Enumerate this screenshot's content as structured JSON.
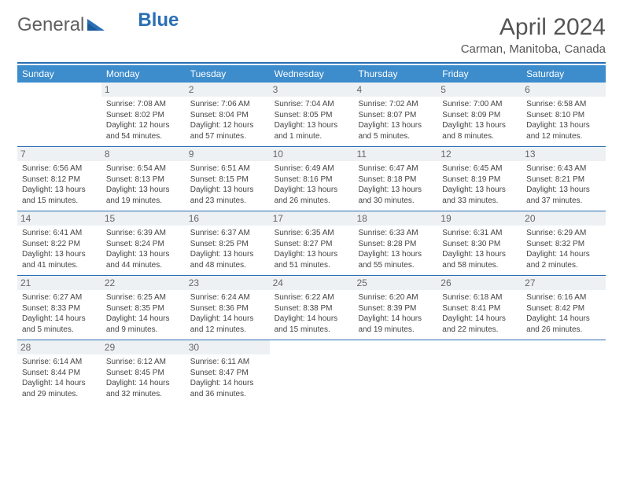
{
  "logo": {
    "word1": "General",
    "word2": "Blue"
  },
  "title": {
    "month": "April 2024",
    "location": "Carman, Manitoba, Canada"
  },
  "headers": [
    "Sunday",
    "Monday",
    "Tuesday",
    "Wednesday",
    "Thursday",
    "Friday",
    "Saturday"
  ],
  "colors": {
    "accent": "#2a6fb5",
    "header_bg": "#3d8ccc",
    "daynum_bg": "#eef1f3",
    "text": "#333333"
  },
  "weeks": [
    [
      {
        "n": "",
        "lines": []
      },
      {
        "n": "1",
        "lines": [
          "Sunrise: 7:08 AM",
          "Sunset: 8:02 PM",
          "Daylight: 12 hours",
          "and 54 minutes."
        ]
      },
      {
        "n": "2",
        "lines": [
          "Sunrise: 7:06 AM",
          "Sunset: 8:04 PM",
          "Daylight: 12 hours",
          "and 57 minutes."
        ]
      },
      {
        "n": "3",
        "lines": [
          "Sunrise: 7:04 AM",
          "Sunset: 8:05 PM",
          "Daylight: 13 hours",
          "and 1 minute."
        ]
      },
      {
        "n": "4",
        "lines": [
          "Sunrise: 7:02 AM",
          "Sunset: 8:07 PM",
          "Daylight: 13 hours",
          "and 5 minutes."
        ]
      },
      {
        "n": "5",
        "lines": [
          "Sunrise: 7:00 AM",
          "Sunset: 8:09 PM",
          "Daylight: 13 hours",
          "and 8 minutes."
        ]
      },
      {
        "n": "6",
        "lines": [
          "Sunrise: 6:58 AM",
          "Sunset: 8:10 PM",
          "Daylight: 13 hours",
          "and 12 minutes."
        ]
      }
    ],
    [
      {
        "n": "7",
        "lines": [
          "Sunrise: 6:56 AM",
          "Sunset: 8:12 PM",
          "Daylight: 13 hours",
          "and 15 minutes."
        ]
      },
      {
        "n": "8",
        "lines": [
          "Sunrise: 6:54 AM",
          "Sunset: 8:13 PM",
          "Daylight: 13 hours",
          "and 19 minutes."
        ]
      },
      {
        "n": "9",
        "lines": [
          "Sunrise: 6:51 AM",
          "Sunset: 8:15 PM",
          "Daylight: 13 hours",
          "and 23 minutes."
        ]
      },
      {
        "n": "10",
        "lines": [
          "Sunrise: 6:49 AM",
          "Sunset: 8:16 PM",
          "Daylight: 13 hours",
          "and 26 minutes."
        ]
      },
      {
        "n": "11",
        "lines": [
          "Sunrise: 6:47 AM",
          "Sunset: 8:18 PM",
          "Daylight: 13 hours",
          "and 30 minutes."
        ]
      },
      {
        "n": "12",
        "lines": [
          "Sunrise: 6:45 AM",
          "Sunset: 8:19 PM",
          "Daylight: 13 hours",
          "and 33 minutes."
        ]
      },
      {
        "n": "13",
        "lines": [
          "Sunrise: 6:43 AM",
          "Sunset: 8:21 PM",
          "Daylight: 13 hours",
          "and 37 minutes."
        ]
      }
    ],
    [
      {
        "n": "14",
        "lines": [
          "Sunrise: 6:41 AM",
          "Sunset: 8:22 PM",
          "Daylight: 13 hours",
          "and 41 minutes."
        ]
      },
      {
        "n": "15",
        "lines": [
          "Sunrise: 6:39 AM",
          "Sunset: 8:24 PM",
          "Daylight: 13 hours",
          "and 44 minutes."
        ]
      },
      {
        "n": "16",
        "lines": [
          "Sunrise: 6:37 AM",
          "Sunset: 8:25 PM",
          "Daylight: 13 hours",
          "and 48 minutes."
        ]
      },
      {
        "n": "17",
        "lines": [
          "Sunrise: 6:35 AM",
          "Sunset: 8:27 PM",
          "Daylight: 13 hours",
          "and 51 minutes."
        ]
      },
      {
        "n": "18",
        "lines": [
          "Sunrise: 6:33 AM",
          "Sunset: 8:28 PM",
          "Daylight: 13 hours",
          "and 55 minutes."
        ]
      },
      {
        "n": "19",
        "lines": [
          "Sunrise: 6:31 AM",
          "Sunset: 8:30 PM",
          "Daylight: 13 hours",
          "and 58 minutes."
        ]
      },
      {
        "n": "20",
        "lines": [
          "Sunrise: 6:29 AM",
          "Sunset: 8:32 PM",
          "Daylight: 14 hours",
          "and 2 minutes."
        ]
      }
    ],
    [
      {
        "n": "21",
        "lines": [
          "Sunrise: 6:27 AM",
          "Sunset: 8:33 PM",
          "Daylight: 14 hours",
          "and 5 minutes."
        ]
      },
      {
        "n": "22",
        "lines": [
          "Sunrise: 6:25 AM",
          "Sunset: 8:35 PM",
          "Daylight: 14 hours",
          "and 9 minutes."
        ]
      },
      {
        "n": "23",
        "lines": [
          "Sunrise: 6:24 AM",
          "Sunset: 8:36 PM",
          "Daylight: 14 hours",
          "and 12 minutes."
        ]
      },
      {
        "n": "24",
        "lines": [
          "Sunrise: 6:22 AM",
          "Sunset: 8:38 PM",
          "Daylight: 14 hours",
          "and 15 minutes."
        ]
      },
      {
        "n": "25",
        "lines": [
          "Sunrise: 6:20 AM",
          "Sunset: 8:39 PM",
          "Daylight: 14 hours",
          "and 19 minutes."
        ]
      },
      {
        "n": "26",
        "lines": [
          "Sunrise: 6:18 AM",
          "Sunset: 8:41 PM",
          "Daylight: 14 hours",
          "and 22 minutes."
        ]
      },
      {
        "n": "27",
        "lines": [
          "Sunrise: 6:16 AM",
          "Sunset: 8:42 PM",
          "Daylight: 14 hours",
          "and 26 minutes."
        ]
      }
    ],
    [
      {
        "n": "28",
        "lines": [
          "Sunrise: 6:14 AM",
          "Sunset: 8:44 PM",
          "Daylight: 14 hours",
          "and 29 minutes."
        ]
      },
      {
        "n": "29",
        "lines": [
          "Sunrise: 6:12 AM",
          "Sunset: 8:45 PM",
          "Daylight: 14 hours",
          "and 32 minutes."
        ]
      },
      {
        "n": "30",
        "lines": [
          "Sunrise: 6:11 AM",
          "Sunset: 8:47 PM",
          "Daylight: 14 hours",
          "and 36 minutes."
        ]
      },
      {
        "n": "",
        "lines": []
      },
      {
        "n": "",
        "lines": []
      },
      {
        "n": "",
        "lines": []
      },
      {
        "n": "",
        "lines": []
      }
    ]
  ]
}
